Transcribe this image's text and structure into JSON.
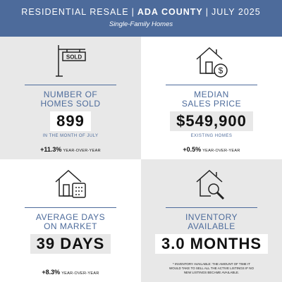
{
  "header": {
    "title_left": "RESIDENTIAL RESALE",
    "separator": "|",
    "title_bold": "ADA COUNTY",
    "title_right": "JULY 2025",
    "subtitle": "Single-Family Homes"
  },
  "panels": [
    {
      "heading": [
        "NUMBER OF",
        "HOMES SOLD"
      ],
      "value": "899",
      "note": "IN THE MONTH OF JULY",
      "change": "+11.3%",
      "change_label": "YEAR-OVER-YEAR",
      "icon_text": "SOLD"
    },
    {
      "heading": [
        "MEDIAN",
        "SALES PRICE"
      ],
      "value": "$549,900",
      "note": "EXISTING HOMES",
      "change": "+0.5%",
      "change_label": "YEAR-OVER-YEAR"
    },
    {
      "heading": [
        "AVERAGE DAYS",
        "ON MARKET"
      ],
      "value": "39 DAYS",
      "change": "+8.3%",
      "change_label": "YEAR-OVER-YEAR"
    },
    {
      "heading": [
        "INVENTORY",
        "AVAILABLE"
      ],
      "value": "3.0 MONTHS",
      "footnote": "* INVENTORY AVAILABLE: THE AMOUNT OF TIME IT WOULD TAKE TO SELL ALL THE ACTIVE LISTINGS IF NO NEW LISTINGS BECAME AVAILABLE."
    }
  ]
}
